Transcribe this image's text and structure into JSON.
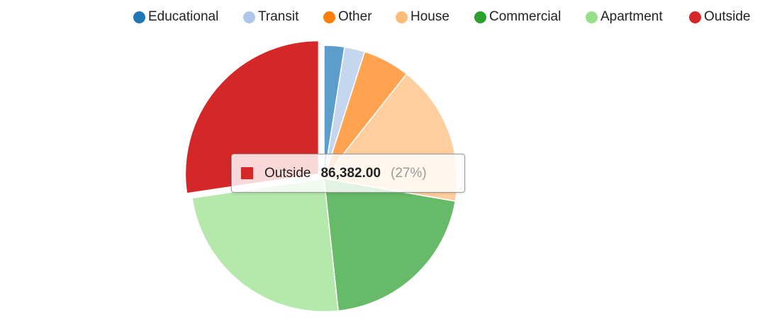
{
  "chart_data": {
    "type": "pie",
    "categories": [
      "Educational",
      "Transit",
      "Other",
      "House",
      "Commercial",
      "Apartment",
      "Outside"
    ],
    "values": [
      7800,
      7800,
      18000,
      54000,
      65000,
      77000,
      86382
    ],
    "colors": [
      "#1f77b4",
      "#aec7e8",
      "#ff7f0e",
      "#ffbb78",
      "#2ca02c",
      "#98df8a",
      "#d62728"
    ],
    "legend_position": "top-right",
    "start_angle_deg": 0,
    "direction": "clockwise"
  },
  "tooltip": {
    "label": "Outside",
    "value": "86,382.00",
    "percent": "(27%)",
    "color": "#d62728"
  }
}
